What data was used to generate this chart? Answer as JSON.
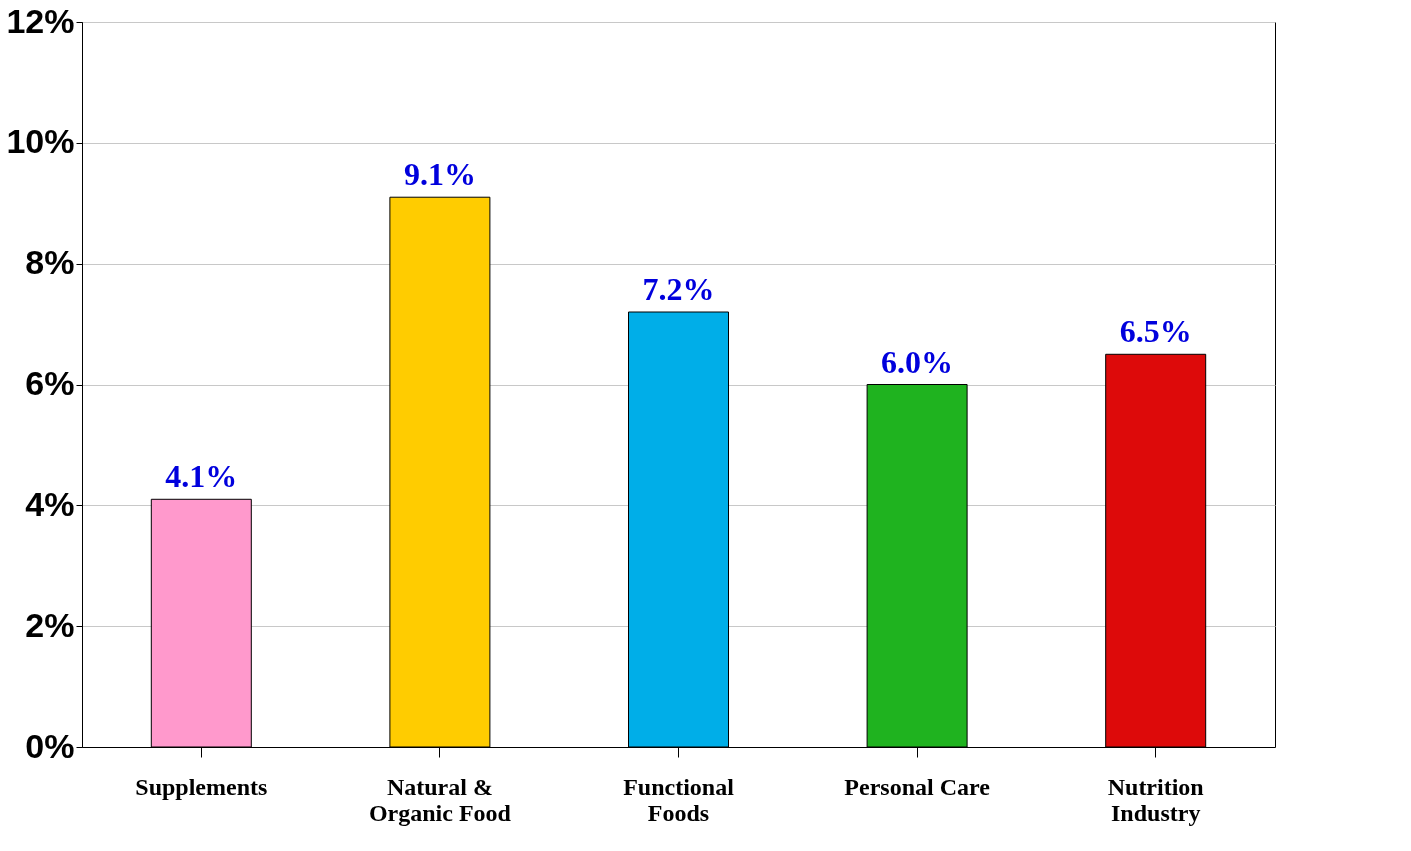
{
  "chart_data": {
    "type": "bar",
    "categories": [
      "Supplements",
      "Natural & Organic Food",
      "Functional Foods",
      "Personal Care",
      "Nutrition Industry"
    ],
    "values": [
      4.1,
      9.1,
      7.2,
      6.0,
      6.5
    ],
    "colors": [
      "#ff99cc",
      "#ffcc00",
      "#00aee8",
      "#1fb31f",
      "#dd0a0a"
    ],
    "value_labels": [
      "4.1%",
      "9.1%",
      "7.2%",
      "6.0%",
      "6.5%"
    ],
    "ylim": [
      0,
      12
    ],
    "yticks": [
      {
        "value": 0,
        "label": "0%"
      },
      {
        "value": 2,
        "label": "2%"
      },
      {
        "value": 4,
        "label": "4%"
      },
      {
        "value": 6,
        "label": "6%"
      },
      {
        "value": 8,
        "label": "8%"
      },
      {
        "value": 10,
        "label": "10%"
      },
      {
        "value": 12,
        "label": "12%"
      }
    ],
    "grid": "y"
  }
}
